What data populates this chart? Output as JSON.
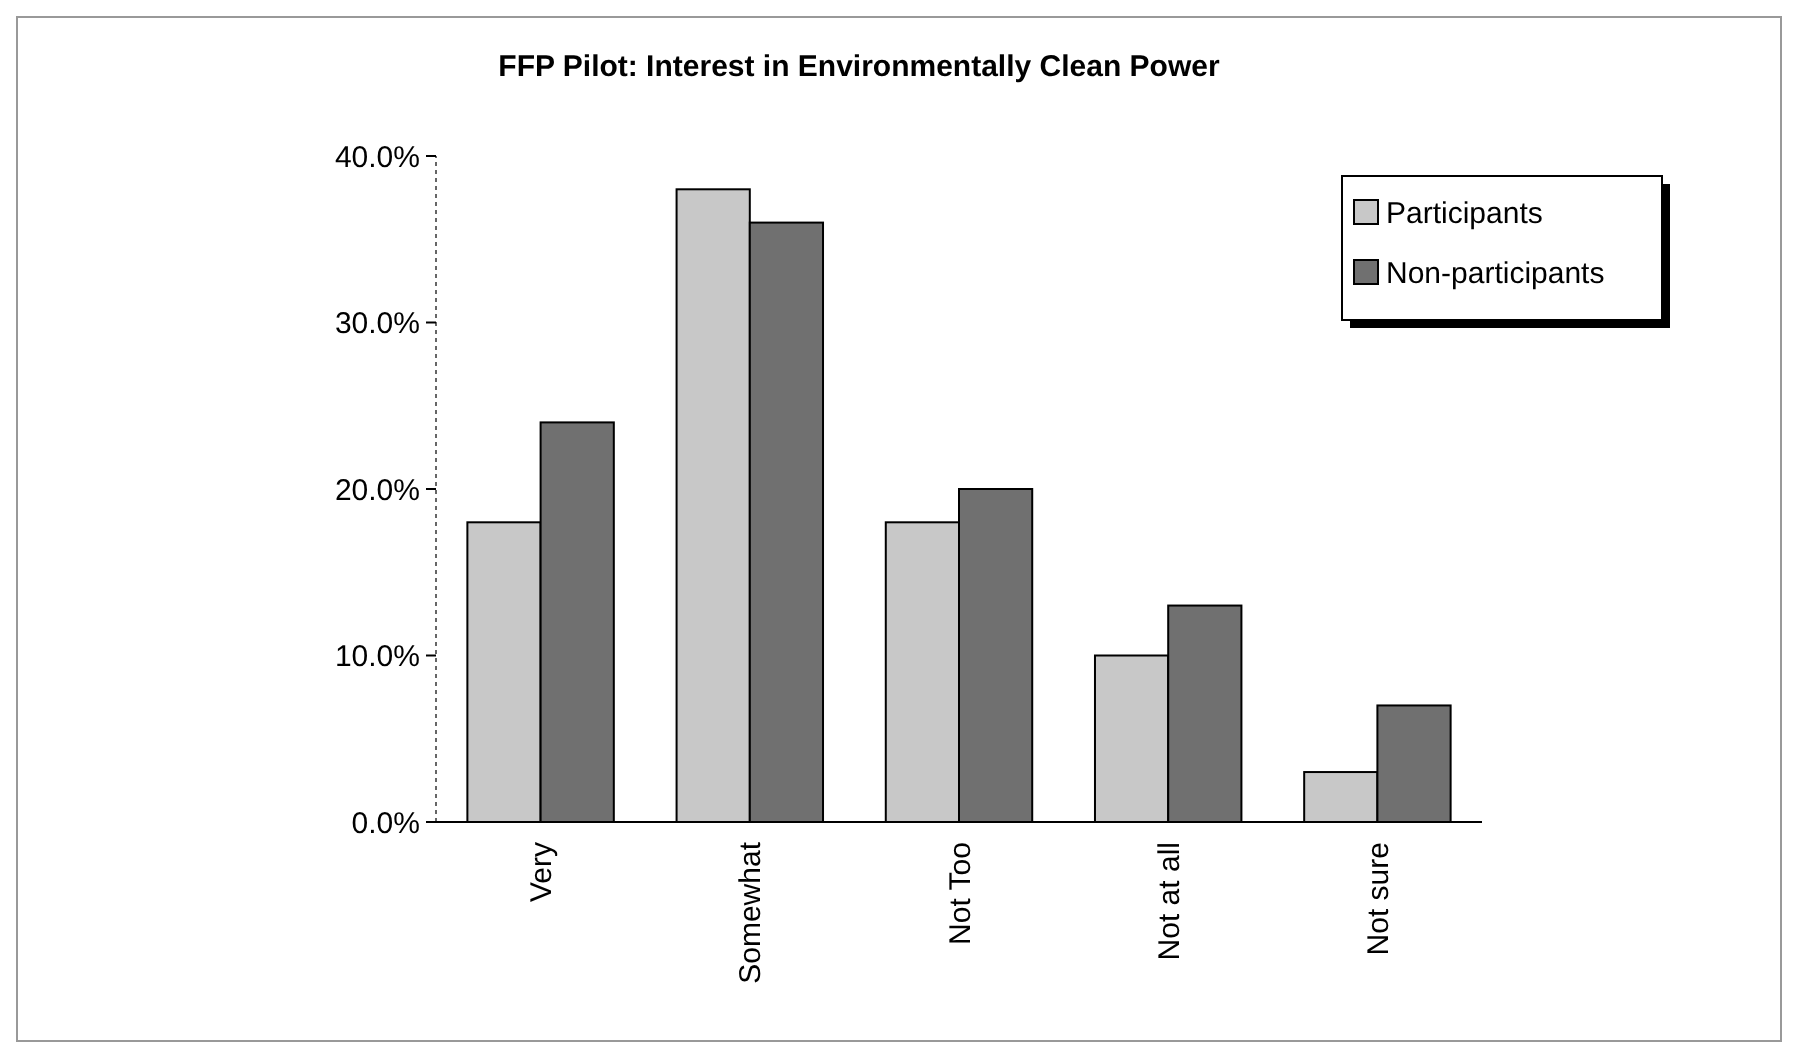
{
  "chart_data": {
    "type": "bar",
    "title": "FFP Pilot:  Interest in Environmentally Clean Power",
    "categories": [
      "Very",
      "Somewhat",
      "Not Too",
      "Not at all",
      "Not sure"
    ],
    "series": [
      {
        "name": "Participants",
        "color": "#c8c8c8",
        "values": [
          18,
          38,
          18,
          10,
          3
        ]
      },
      {
        "name": "Non-participants",
        "color": "#707070",
        "values": [
          24,
          36,
          20,
          13,
          7
        ]
      }
    ],
    "ylim": [
      0,
      40
    ],
    "yticks": [
      {
        "value": 0,
        "label": "0.0%"
      },
      {
        "value": 10,
        "label": "10.0%"
      },
      {
        "value": 20,
        "label": "20.0%"
      },
      {
        "value": 30,
        "label": "30.0%"
      },
      {
        "value": 40,
        "label": "40.0%"
      }
    ],
    "grid": false,
    "legend": "top right"
  }
}
